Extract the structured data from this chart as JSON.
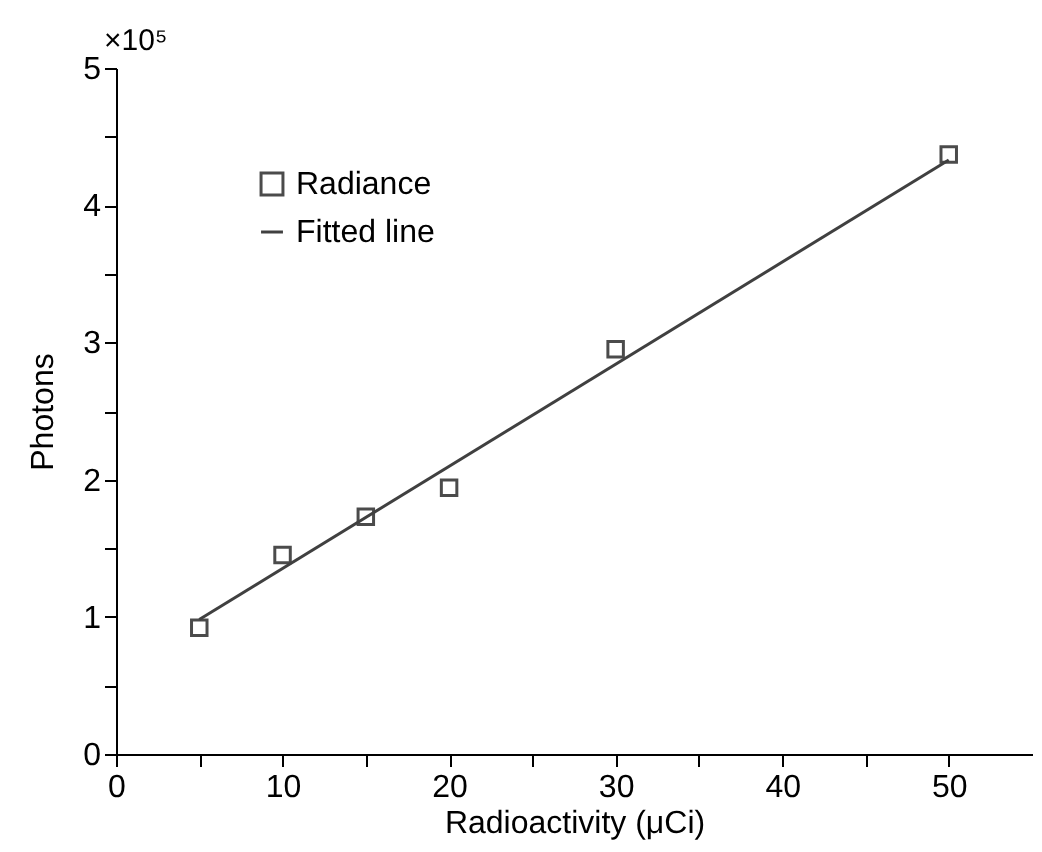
{
  "chart_data": {
    "type": "scatter",
    "xlabel": "Radioactivity (μCi)",
    "ylabel": "Photons",
    "annotations": [
      "×10⁵"
    ],
    "xlim": [
      0,
      55
    ],
    "ylim": [
      0,
      5
    ],
    "xticks": [
      0,
      {
        "value": 5,
        "label": null
      },
      10,
      {
        "value": 15,
        "label": null
      },
      20,
      {
        "value": 25,
        "label": null
      },
      30,
      {
        "value": 35,
        "label": null
      },
      40,
      {
        "value": 45,
        "label": null
      },
      50
    ],
    "yticks": [
      0,
      {
        "value": 0.5,
        "label": null
      },
      1,
      {
        "value": 1.5,
        "label": null
      },
      2,
      {
        "value": 2.5,
        "label": null
      },
      3,
      {
        "value": 3.5,
        "label": null
      },
      4,
      {
        "value": 4.5,
        "label": null
      },
      5
    ],
    "legend": "top left",
    "grid": false,
    "series": [
      {
        "name": "Radiance",
        "type": "scatter",
        "marker": "square",
        "color": "#000000",
        "x": [
          5,
          10,
          15,
          20,
          30,
          50
        ],
        "values": [
          0.92,
          1.45,
          1.73,
          1.94,
          2.95,
          4.37
        ]
      },
      {
        "name": "Fitted line",
        "type": "line",
        "line_style": "solid",
        "color": "#404040",
        "x": [
          5,
          50
        ],
        "values": [
          0.98,
          4.33
        ]
      }
    ]
  }
}
